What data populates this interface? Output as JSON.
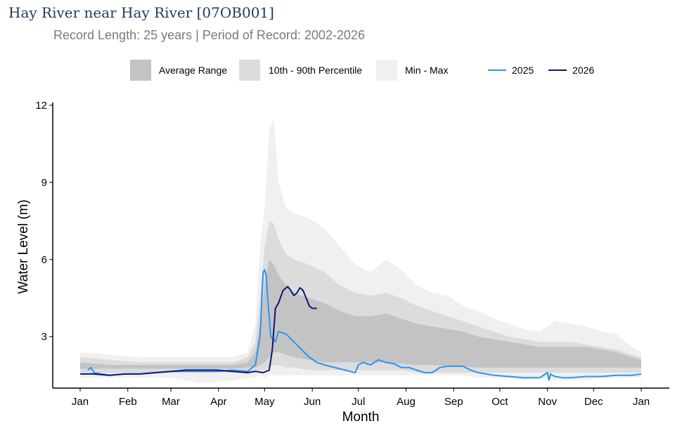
{
  "chart_data": {
    "type": "area",
    "title": "Hay River near Hay River [07OB001]",
    "subtitle": "Record Length: 25 years | Period of Record: 2002-2026",
    "xlabel": "Month",
    "ylabel": "Water Level (m)",
    "x_unit": "day_of_year",
    "xlim": [
      1,
      366
    ],
    "ylim": [
      1.0,
      12.0
    ],
    "y_ticks": [
      3,
      6,
      9,
      12
    ],
    "x_ticks": [
      {
        "label": "Jan",
        "doy": 1
      },
      {
        "label": "Feb",
        "doy": 32
      },
      {
        "label": "Mar",
        "doy": 60
      },
      {
        "label": "Apr",
        "doy": 91
      },
      {
        "label": "May",
        "doy": 121
      },
      {
        "label": "Jun",
        "doy": 152
      },
      {
        "label": "Jul",
        "doy": 182
      },
      {
        "label": "Aug",
        "doy": 213
      },
      {
        "label": "Sep",
        "doy": 244
      },
      {
        "label": "Oct",
        "doy": 274
      },
      {
        "label": "Nov",
        "doy": 305
      },
      {
        "label": "Dec",
        "doy": 335
      },
      {
        "label": "Jan",
        "doy": 366
      }
    ],
    "legend": {
      "placement": "top",
      "bands": [
        {
          "name": "Average Range",
          "color": "#c3c3c3"
        },
        {
          "name": "10th - 90th Percentile",
          "color": "#dcdcdc"
        },
        {
          "name": "Min - Max",
          "color": "#f0f0f0"
        }
      ],
      "lines": [
        {
          "name": "2025",
          "color": "#2b95f0"
        },
        {
          "name": "2026",
          "color": "#0e1577"
        }
      ]
    },
    "grid": false,
    "bands": [
      {
        "name": "Min - Max",
        "color": "#f0f0f0",
        "x": [
          1,
          20,
          40,
          60,
          80,
          100,
          110,
          115,
          118,
          121,
          124,
          127,
          130,
          135,
          140,
          150,
          160,
          170,
          180,
          190,
          200,
          210,
          220,
          230,
          240,
          250,
          260,
          270,
          280,
          290,
          300,
          310,
          320,
          330,
          340,
          350,
          360,
          366
        ],
        "upper": [
          2.4,
          2.3,
          2.2,
          2.2,
          2.2,
          2.2,
          2.4,
          3.5,
          6.5,
          8.0,
          11.0,
          11.5,
          9.0,
          8.0,
          7.8,
          7.6,
          7.2,
          6.5,
          5.8,
          5.5,
          6.0,
          5.6,
          5.0,
          4.7,
          4.6,
          4.2,
          4.0,
          3.7,
          3.5,
          3.3,
          3.2,
          3.6,
          3.5,
          3.4,
          3.2,
          3.1,
          2.6,
          2.4
        ],
        "lower": [
          1.4,
          1.4,
          1.4,
          1.4,
          1.2,
          1.3,
          1.4,
          1.4,
          1.5,
          1.4,
          1.5,
          1.5,
          1.5,
          1.5,
          1.5,
          1.5,
          1.5,
          1.5,
          1.5,
          1.5,
          1.5,
          1.5,
          1.5,
          1.5,
          1.5,
          1.5,
          1.4,
          1.4,
          1.4,
          1.3,
          1.4,
          1.3,
          1.3,
          1.3,
          1.4,
          1.4,
          1.4,
          1.4
        ]
      },
      {
        "name": "10th - 90th Percentile",
        "color": "#dcdcdc",
        "x": [
          1,
          20,
          40,
          60,
          80,
          100,
          110,
          115,
          118,
          121,
          124,
          127,
          130,
          135,
          140,
          150,
          160,
          170,
          180,
          190,
          200,
          210,
          220,
          230,
          240,
          250,
          260,
          270,
          280,
          290,
          300,
          310,
          320,
          330,
          340,
          350,
          360,
          366
        ],
        "upper": [
          2.2,
          2.1,
          2.0,
          2.0,
          2.0,
          2.0,
          2.2,
          2.8,
          4.5,
          6.5,
          7.5,
          7.4,
          6.8,
          6.2,
          6.0,
          5.8,
          5.5,
          5.0,
          4.7,
          4.6,
          4.7,
          4.5,
          4.2,
          4.0,
          3.8,
          3.6,
          3.4,
          3.2,
          3.0,
          2.9,
          2.8,
          2.8,
          2.8,
          2.7,
          2.6,
          2.5,
          2.3,
          2.2
        ],
        "lower": [
          1.6,
          1.6,
          1.6,
          1.6,
          1.6,
          1.6,
          1.6,
          1.6,
          1.7,
          1.7,
          1.8,
          1.9,
          1.9,
          1.8,
          1.8,
          1.7,
          1.7,
          1.7,
          1.7,
          1.7,
          1.7,
          1.7,
          1.6,
          1.6,
          1.6,
          1.6,
          1.6,
          1.6,
          1.6,
          1.6,
          1.6,
          1.6,
          1.6,
          1.6,
          1.6,
          1.6,
          1.6,
          1.6
        ]
      },
      {
        "name": "Average Range",
        "color": "#c3c3c3",
        "x": [
          1,
          20,
          40,
          60,
          80,
          100,
          110,
          115,
          118,
          121,
          124,
          127,
          130,
          135,
          140,
          150,
          160,
          170,
          180,
          190,
          200,
          210,
          220,
          230,
          240,
          250,
          260,
          270,
          280,
          290,
          300,
          310,
          320,
          330,
          340,
          350,
          360,
          366
        ],
        "upper": [
          2.0,
          1.9,
          1.9,
          1.9,
          1.9,
          1.9,
          2.0,
          2.4,
          3.5,
          5.0,
          6.0,
          5.8,
          5.4,
          5.0,
          4.7,
          4.5,
          4.3,
          4.0,
          3.8,
          3.8,
          3.9,
          3.7,
          3.5,
          3.4,
          3.3,
          3.2,
          3.0,
          2.9,
          2.8,
          2.7,
          2.6,
          2.6,
          2.6,
          2.6,
          2.5,
          2.4,
          2.2,
          2.1
        ],
        "lower": [
          1.75,
          1.75,
          1.75,
          1.75,
          1.75,
          1.75,
          1.8,
          1.8,
          1.9,
          2.0,
          2.2,
          2.4,
          2.4,
          2.3,
          2.2,
          2.1,
          2.0,
          2.0,
          2.0,
          2.0,
          2.0,
          1.95,
          1.9,
          1.9,
          1.85,
          1.85,
          1.8,
          1.8,
          1.8,
          1.8,
          1.8,
          1.8,
          1.8,
          1.8,
          1.8,
          1.8,
          1.8,
          1.8
        ]
      }
    ],
    "series": [
      {
        "name": "2025",
        "color": "#2b95f0",
        "x": [
          6,
          8,
          10,
          15,
          20,
          30,
          40,
          50,
          60,
          70,
          80,
          90,
          100,
          110,
          115,
          118,
          120,
          121,
          122,
          123,
          125,
          128,
          130,
          135,
          140,
          145,
          150,
          155,
          160,
          170,
          180,
          182,
          185,
          190,
          195,
          200,
          205,
          210,
          215,
          220,
          225,
          230,
          235,
          240,
          245,
          250,
          255,
          260,
          265,
          270,
          280,
          290,
          300,
          305,
          306,
          307,
          308,
          310,
          315,
          320,
          330,
          340,
          350,
          360,
          366
        ],
        "y": [
          1.7,
          1.8,
          1.6,
          1.55,
          1.5,
          1.55,
          1.55,
          1.6,
          1.65,
          1.65,
          1.65,
          1.65,
          1.7,
          1.65,
          1.9,
          3.0,
          5.5,
          5.6,
          5.4,
          4.5,
          3.0,
          2.8,
          3.2,
          3.1,
          2.8,
          2.5,
          2.2,
          2.0,
          1.9,
          1.75,
          1.6,
          1.9,
          2.0,
          1.9,
          2.1,
          2.0,
          1.95,
          1.8,
          1.8,
          1.7,
          1.6,
          1.6,
          1.8,
          1.85,
          1.85,
          1.85,
          1.7,
          1.6,
          1.55,
          1.5,
          1.45,
          1.4,
          1.4,
          1.6,
          1.3,
          1.55,
          1.5,
          1.45,
          1.4,
          1.4,
          1.45,
          1.45,
          1.5,
          1.5,
          1.55
        ]
      },
      {
        "name": "2026",
        "color": "#0e1577",
        "x": [
          1,
          10,
          20,
          30,
          40,
          50,
          60,
          70,
          80,
          90,
          100,
          110,
          115,
          120,
          124,
          126,
          128,
          130,
          133,
          136,
          138,
          140,
          142,
          144,
          146,
          148,
          150,
          152,
          155
        ],
        "y": [
          1.55,
          1.55,
          1.5,
          1.55,
          1.55,
          1.6,
          1.65,
          1.7,
          1.7,
          1.7,
          1.65,
          1.6,
          1.65,
          1.6,
          1.7,
          2.5,
          4.1,
          4.3,
          4.8,
          4.95,
          4.8,
          4.6,
          4.7,
          4.9,
          4.8,
          4.5,
          4.2,
          4.1,
          4.1
        ]
      }
    ]
  }
}
